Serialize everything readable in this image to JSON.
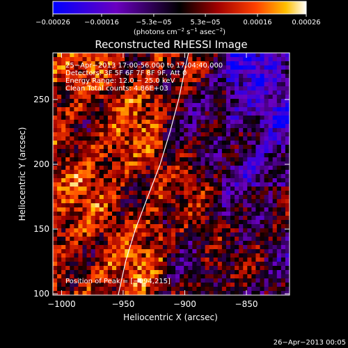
{
  "chart_data": {
    "type": "heatmap",
    "title": "Reconstructed RHESSI Image",
    "xlabel": "Heliocentric X (arcsec)",
    "ylabel": "Heliocentric Y (arcsec)",
    "xlim": [
      -1007,
      -815
    ],
    "ylim": [
      99,
      286
    ],
    "x_ticks": [
      -1000,
      -950,
      -900,
      -850
    ],
    "x_tick_labels": [
      "−1000",
      "−950",
      "−900",
      "−850"
    ],
    "y_ticks": [
      100,
      150,
      200,
      250
    ],
    "y_tick_labels": [
      "100",
      "150",
      "200",
      "250"
    ],
    "colorbar": {
      "min": -0.00026,
      "max": 0.00026,
      "ticks": [
        -0.00026,
        -0.00016,
        -5.3e-05,
        5.3e-05,
        0.00016,
        0.00026
      ],
      "tick_labels": [
        "−0.00026",
        "−0.00016",
        "−5.3e−05",
        "5.3e−05",
        "0.00016",
        "0.00026"
      ],
      "unit_prefix": "(photons cm",
      "unit_sup1": "−2",
      "unit_mid": " s",
      "unit_sup2": "−1",
      "unit_mid2": " asec",
      "unit_sup3": "−2",
      "unit_suffix": ")",
      "colors": [
        "#0000ff",
        "#6a00c0",
        "#000000",
        "#a00000",
        "#ff4000",
        "#ffc000",
        "#ffffff"
      ]
    },
    "annotations": [
      "25−Apr−2013 17:00:56.000 to 17:04:40.000",
      "Detectors: 3F 5F 6F 7F 8F 9F, Att 0",
      "Energy Range: 12.0 − 25.0 keV",
      "Clean     Total counts: 4.86E+03"
    ],
    "peak_label": "Position of Peak = [−994,215]",
    "grid": false,
    "limb_line": {
      "x": [
        -954,
        -948,
        -940,
        -930,
        -920,
        -912,
        -905,
        -897
      ],
      "y": [
        99,
        125,
        150,
        175,
        200,
        225,
        250,
        286
      ]
    }
  },
  "footer_timestamp": "26−Apr−2013 00:05"
}
